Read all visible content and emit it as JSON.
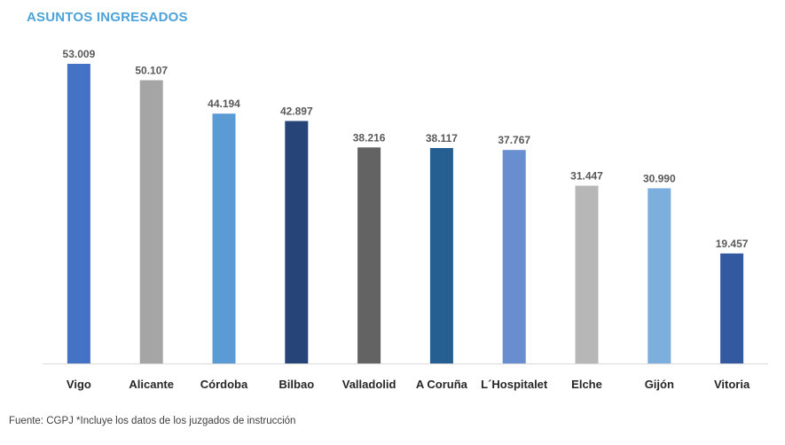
{
  "chart_data": {
    "type": "bar",
    "title": "ASUNTOS INGRESADOS",
    "categories": [
      "Vigo",
      "Alicante",
      "Córdoba",
      "Bilbao",
      "Valladolid",
      "A Coruña",
      "L´Hospitalet",
      "Elche",
      "Gijón",
      "Vitoria"
    ],
    "values": [
      53009,
      50107,
      44194,
      42897,
      38216,
      38117,
      37767,
      31447,
      30990,
      19457
    ],
    "value_labels": [
      "53.009",
      "50.107",
      "44.194",
      "42.897",
      "38.216",
      "38.117",
      "37.767",
      "31.447",
      "30.990",
      "19.457"
    ],
    "colors": [
      "#4472C4",
      "#A5A5A5",
      "#5B9BD5",
      "#264478",
      "#636363",
      "#255E91",
      "#698ED0",
      "#B7B7B7",
      "#7CAFDD",
      "#335AA1"
    ],
    "ylim": [
      0,
      53009
    ],
    "grid": false,
    "legend": "none",
    "xlabel": "",
    "ylabel": ""
  },
  "source_note": "Fuente: CGPJ   *Incluye los datos de los juzgados de instrucción",
  "colors": {
    "title": "#4BA3D9",
    "axis": "#D9D9D9",
    "label_text": "#595959",
    "category_text": "#262626"
  }
}
